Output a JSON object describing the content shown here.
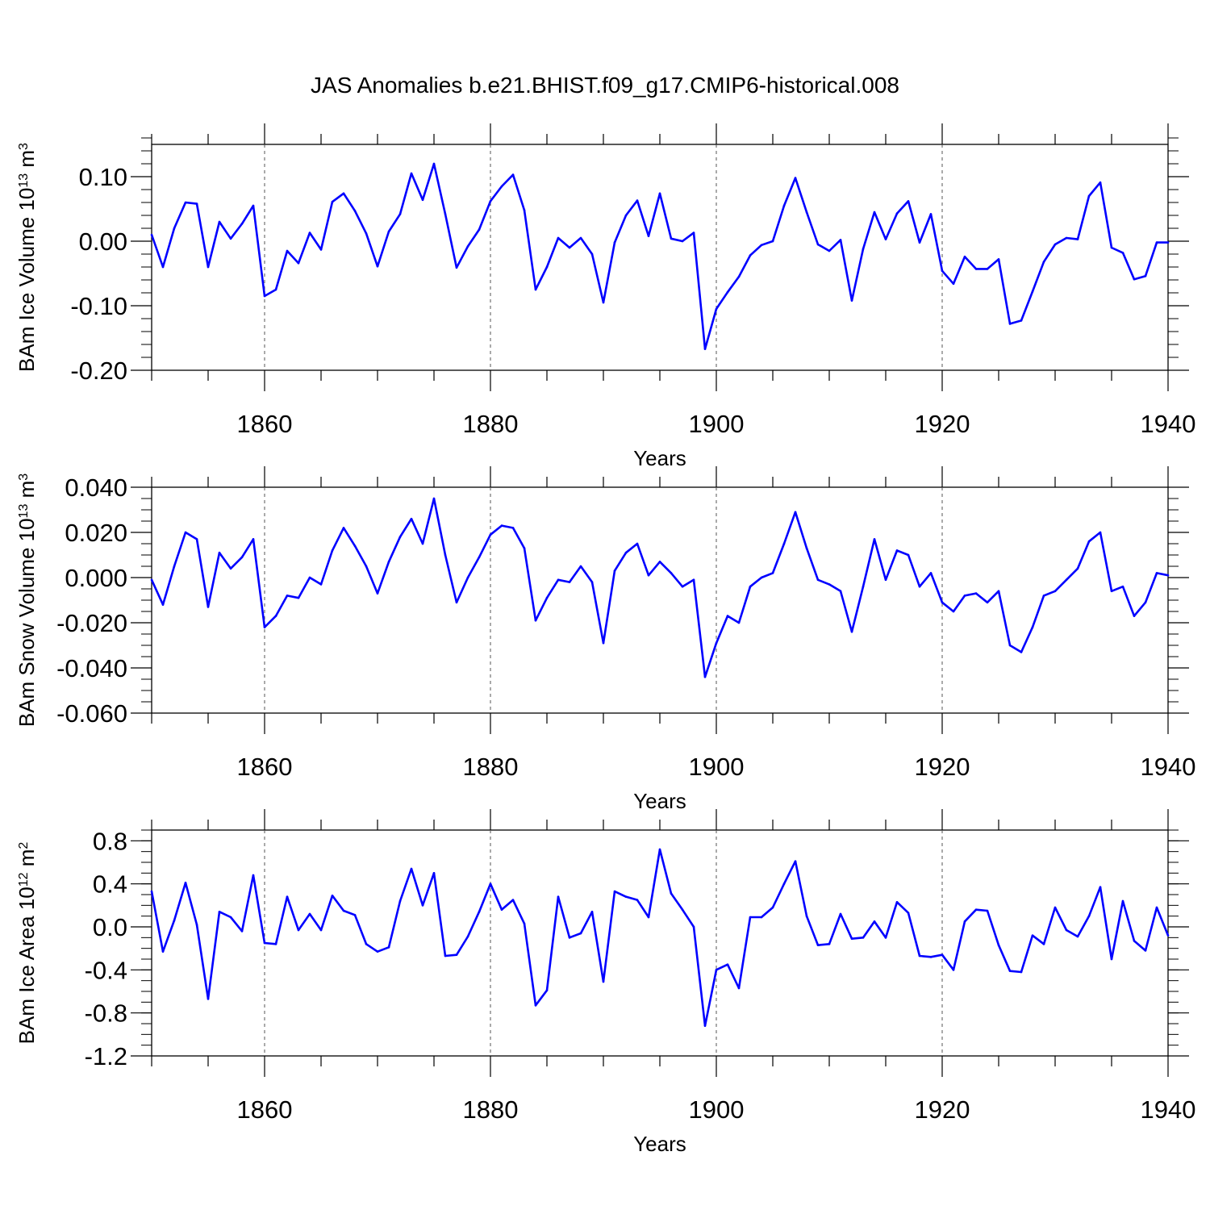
{
  "title": "JAS Anomalies b.e21.BHIST.f09_g17.CMIP6-historical.008",
  "colors": {
    "series": "#0000ff",
    "axis": "#000000",
    "refline": "#555555"
  },
  "chart_data": [
    {
      "type": "line",
      "ylabel": "BAm Ice Volume 10",
      "ylabel_exp": "13",
      "ylabel_unit": " m",
      "ylabel_unit_exp": "3",
      "xlabel": "Years",
      "xlim": [
        1850,
        1940
      ],
      "ylim": [
        -0.2,
        0.15
      ],
      "major_yticks": [
        -0.2,
        -0.1,
        0.0,
        0.1
      ],
      "ytick_labels": [
        "-0.20",
        "-0.10",
        "0.00",
        "0.10"
      ],
      "minor_ytick_step": 0.02,
      "xtick_labels": [
        "1860",
        "1880",
        "1900",
        "1920",
        "1940"
      ],
      "x": [
        1850,
        1851,
        1852,
        1853,
        1854,
        1855,
        1856,
        1857,
        1858,
        1859,
        1860,
        1861,
        1862,
        1863,
        1864,
        1865,
        1866,
        1867,
        1868,
        1869,
        1870,
        1871,
        1872,
        1873,
        1874,
        1875,
        1876,
        1877,
        1878,
        1879,
        1880,
        1881,
        1882,
        1883,
        1884,
        1885,
        1886,
        1887,
        1888,
        1889,
        1890,
        1891,
        1892,
        1893,
        1894,
        1895,
        1896,
        1897,
        1898,
        1899,
        1900,
        1901,
        1902,
        1903,
        1904,
        1905,
        1906,
        1907,
        1908,
        1909,
        1910,
        1911,
        1912,
        1913,
        1914,
        1915,
        1916,
        1917,
        1918,
        1919,
        1920,
        1921,
        1922,
        1923,
        1924,
        1925,
        1926,
        1927,
        1928,
        1929,
        1930,
        1931,
        1932,
        1933,
        1934,
        1935,
        1936,
        1937,
        1938,
        1939,
        1940
      ],
      "values": [
        0.01,
        -0.04,
        0.02,
        0.06,
        0.058,
        -0.04,
        0.03,
        0.004,
        0.027,
        0.055,
        -0.085,
        -0.075,
        -0.015,
        -0.034,
        0.013,
        -0.013,
        0.061,
        0.074,
        0.047,
        0.012,
        -0.039,
        0.015,
        0.042,
        0.105,
        0.064,
        0.12,
        0.042,
        -0.041,
        -0.008,
        0.018,
        0.062,
        0.085,
        0.103,
        0.048,
        -0.075,
        -0.04,
        0.005,
        -0.01,
        0.005,
        -0.02,
        -0.095,
        -0.002,
        0.04,
        0.063,
        0.008,
        0.074,
        0.004,
        0.0,
        0.013,
        -0.167,
        -0.105,
        -0.079,
        -0.055,
        -0.022,
        -0.006,
        0.0,
        0.055,
        0.098,
        0.045,
        -0.005,
        -0.015,
        0.002,
        -0.092,
        -0.012,
        0.045,
        0.003,
        0.043,
        0.062,
        -0.002,
        0.042,
        -0.046,
        -0.066,
        -0.024,
        -0.043,
        -0.043,
        -0.028,
        -0.128,
        -0.123,
        -0.078,
        -0.032,
        -0.005,
        0.005,
        0.003,
        0.07,
        0.091,
        -0.01,
        -0.018,
        -0.059,
        -0.054,
        -0.002,
        -0.002
      ]
    },
    {
      "type": "line",
      "ylabel": "BAm Snow Volume 10",
      "ylabel_exp": "13",
      "ylabel_unit": " m",
      "ylabel_unit_exp": "3",
      "xlabel": "Years",
      "xlim": [
        1850,
        1940
      ],
      "ylim": [
        -0.06,
        0.04
      ],
      "major_yticks": [
        -0.06,
        -0.04,
        -0.02,
        0.0,
        0.02,
        0.04
      ],
      "ytick_labels": [
        "-0.060",
        "-0.040",
        "-0.020",
        "0.000",
        "0.020",
        "0.040"
      ],
      "minor_ytick_step": 0.005,
      "xtick_labels": [
        "1860",
        "1880",
        "1900",
        "1920",
        "1940"
      ],
      "x": [
        1850,
        1851,
        1852,
        1853,
        1854,
        1855,
        1856,
        1857,
        1858,
        1859,
        1860,
        1861,
        1862,
        1863,
        1864,
        1865,
        1866,
        1867,
        1868,
        1869,
        1870,
        1871,
        1872,
        1873,
        1874,
        1875,
        1876,
        1877,
        1878,
        1879,
        1880,
        1881,
        1882,
        1883,
        1884,
        1885,
        1886,
        1887,
        1888,
        1889,
        1890,
        1891,
        1892,
        1893,
        1894,
        1895,
        1896,
        1897,
        1898,
        1899,
        1900,
        1901,
        1902,
        1903,
        1904,
        1905,
        1906,
        1907,
        1908,
        1909,
        1910,
        1911,
        1912,
        1913,
        1914,
        1915,
        1916,
        1917,
        1918,
        1919,
        1920,
        1921,
        1922,
        1923,
        1924,
        1925,
        1926,
        1927,
        1928,
        1929,
        1930,
        1931,
        1932,
        1933,
        1934,
        1935,
        1936,
        1937,
        1938,
        1939,
        1940
      ],
      "values": [
        -0.001,
        -0.012,
        0.005,
        0.02,
        0.017,
        -0.013,
        0.011,
        0.004,
        0.009,
        0.017,
        -0.022,
        -0.017,
        -0.008,
        -0.009,
        0.0,
        -0.003,
        0.012,
        0.022,
        0.014,
        0.005,
        -0.007,
        0.007,
        0.018,
        0.026,
        0.015,
        0.035,
        0.01,
        -0.011,
        0.0,
        0.009,
        0.019,
        0.023,
        0.022,
        0.013,
        -0.019,
        -0.009,
        -0.001,
        -0.002,
        0.005,
        -0.002,
        -0.029,
        0.003,
        0.011,
        0.015,
        0.001,
        0.007,
        0.002,
        -0.004,
        -0.001,
        -0.044,
        -0.029,
        -0.017,
        -0.02,
        -0.004,
        0.0,
        0.002,
        0.015,
        0.029,
        0.013,
        -0.001,
        -0.003,
        -0.006,
        -0.024,
        -0.004,
        0.017,
        -0.001,
        0.012,
        0.01,
        -0.004,
        0.002,
        -0.011,
        -0.015,
        -0.008,
        -0.007,
        -0.011,
        -0.006,
        -0.03,
        -0.033,
        -0.022,
        -0.008,
        -0.006,
        -0.001,
        0.004,
        0.016,
        0.02,
        -0.006,
        -0.004,
        -0.017,
        -0.011,
        0.002,
        0.001
      ]
    },
    {
      "type": "line",
      "ylabel": "BAm Ice Area 10",
      "ylabel_exp": "12",
      "ylabel_unit": " m",
      "ylabel_unit_exp": "2",
      "xlabel": "Years",
      "xlim": [
        1850,
        1940
      ],
      "ylim": [
        -1.2,
        0.9
      ],
      "major_yticks": [
        -1.2,
        -0.8,
        -0.4,
        0.0,
        0.4,
        0.8
      ],
      "ytick_labels": [
        "-1.2",
        "-0.8",
        "-0.4",
        "0.0",
        "0.4",
        "0.8"
      ],
      "minor_ytick_step": 0.1,
      "xtick_labels": [
        "1860",
        "1880",
        "1900",
        "1920",
        "1940"
      ],
      "x": [
        1850,
        1851,
        1852,
        1853,
        1854,
        1855,
        1856,
        1857,
        1858,
        1859,
        1860,
        1861,
        1862,
        1863,
        1864,
        1865,
        1866,
        1867,
        1868,
        1869,
        1870,
        1871,
        1872,
        1873,
        1874,
        1875,
        1876,
        1877,
        1878,
        1879,
        1880,
        1881,
        1882,
        1883,
        1884,
        1885,
        1886,
        1887,
        1888,
        1889,
        1890,
        1891,
        1892,
        1893,
        1894,
        1895,
        1896,
        1897,
        1898,
        1899,
        1900,
        1901,
        1902,
        1903,
        1904,
        1905,
        1906,
        1907,
        1908,
        1909,
        1910,
        1911,
        1912,
        1913,
        1914,
        1915,
        1916,
        1917,
        1918,
        1919,
        1920,
        1921,
        1922,
        1923,
        1924,
        1925,
        1926,
        1927,
        1928,
        1929,
        1930,
        1931,
        1932,
        1933,
        1934,
        1935,
        1936,
        1937,
        1938,
        1939,
        1940
      ],
      "values": [
        0.33,
        -0.23,
        0.06,
        0.41,
        0.02,
        -0.67,
        0.14,
        0.09,
        -0.04,
        0.48,
        -0.15,
        -0.16,
        0.28,
        -0.03,
        0.12,
        -0.03,
        0.29,
        0.15,
        0.11,
        -0.16,
        -0.23,
        -0.19,
        0.24,
        0.54,
        0.2,
        0.5,
        -0.27,
        -0.26,
        -0.09,
        0.14,
        0.4,
        0.16,
        0.25,
        0.03,
        -0.73,
        -0.59,
        0.28,
        -0.1,
        -0.06,
        0.14,
        -0.51,
        0.33,
        0.28,
        0.25,
        0.09,
        0.72,
        0.31,
        0.16,
        0.0,
        -0.92,
        -0.4,
        -0.35,
        -0.57,
        0.09,
        0.09,
        0.18,
        0.4,
        0.61,
        0.1,
        -0.17,
        -0.16,
        0.12,
        -0.11,
        -0.1,
        0.05,
        -0.1,
        0.23,
        0.13,
        -0.27,
        -0.28,
        -0.26,
        -0.4,
        0.05,
        0.16,
        0.15,
        -0.17,
        -0.41,
        -0.42,
        -0.08,
        -0.16,
        0.18,
        -0.03,
        -0.09,
        0.1,
        0.37,
        -0.3,
        0.24,
        -0.13,
        -0.22,
        0.18,
        -0.08
      ]
    }
  ]
}
